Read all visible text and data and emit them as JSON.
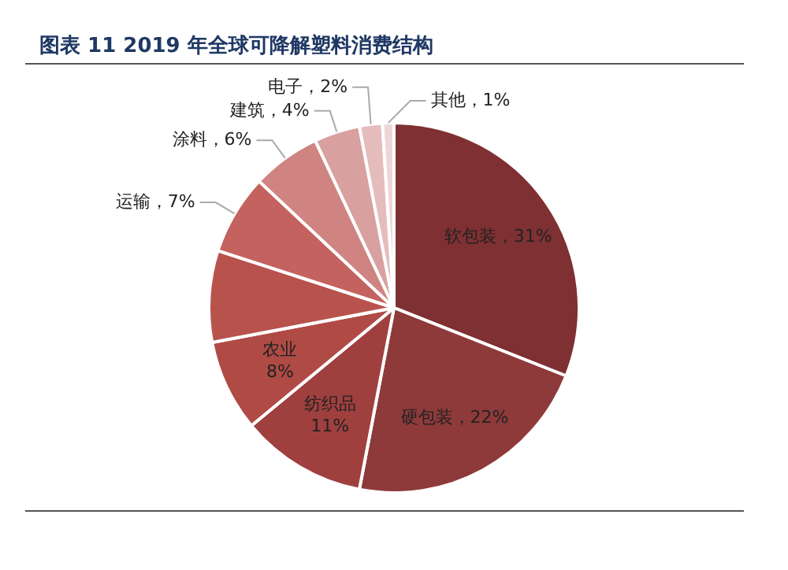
{
  "chart_data": {
    "type": "pie",
    "title": "图表 11 2019 年全球可降解塑料消费结构",
    "categories": [
      "软包装",
      "硬包装",
      "纺织品",
      "农业",
      null,
      "运输",
      "涂料",
      "建筑",
      "电子",
      "其他"
    ],
    "values": [
      31,
      22,
      11,
      8,
      8,
      7,
      6,
      4,
      2,
      1
    ],
    "colors": [
      "#7f3033",
      "#8e3a3a",
      "#a0403e",
      "#b04a45",
      "#b8524d",
      "#c4625f",
      "#cf8482",
      "#d9a0a0",
      "#e5bcbc",
      "#efd6d6"
    ],
    "value_labels": [
      "31%",
      "22%",
      "11%",
      "8%",
      null,
      "7%",
      "6%",
      "4%",
      "2%",
      "1%"
    ],
    "legend": false
  }
}
